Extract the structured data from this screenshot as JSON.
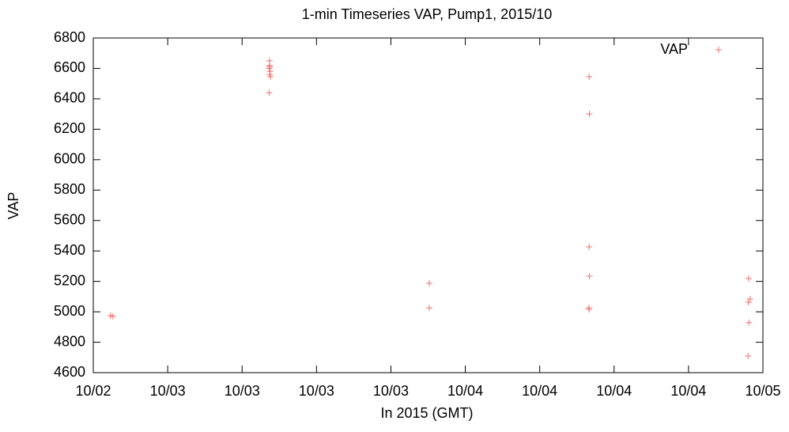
{
  "chart_data": {
    "type": "scatter",
    "title": "1-min Timeseries VAP, Pump1, 2015/10",
    "x_label": "In 2015 (GMT)",
    "y_label": "VAP",
    "legend_position": "top-right",
    "series": [
      {
        "name": "VAP",
        "color": "#f07070",
        "x": [
          2.808,
          2.816,
          3.342,
          3.342,
          3.343,
          3.341,
          3.344,
          3.343,
          3.345,
          3.341,
          3.879,
          3.879,
          4.416,
          4.417,
          4.416,
          4.417,
          4.415,
          4.416,
          4.952,
          4.957,
          4.951,
          4.953,
          4.95
        ],
        "values": [
          4975,
          4970,
          6650,
          6620,
          6610,
          6600,
          6580,
          6560,
          6545,
          6440,
          5188,
          5026,
          6545,
          6300,
          5427,
          5234,
          5026,
          5016,
          5219,
          5084,
          5063,
          4928,
          4709
        ]
      }
    ],
    "xlim": [
      2.75,
      5.0
    ],
    "xticks": [
      {
        "value": 2.75,
        "label": "10/02"
      },
      {
        "value": 3.0,
        "label": "10/03"
      },
      {
        "value": 3.25,
        "label": "10/03"
      },
      {
        "value": 3.5,
        "label": "10/03"
      },
      {
        "value": 3.75,
        "label": "10/03"
      },
      {
        "value": 4.0,
        "label": "10/04"
      },
      {
        "value": 4.25,
        "label": "10/04"
      },
      {
        "value": 4.5,
        "label": "10/04"
      },
      {
        "value": 4.75,
        "label": "10/04"
      },
      {
        "value": 5.0,
        "label": "10/05"
      }
    ],
    "ylim": [
      4600,
      6800
    ],
    "yticks": [
      4600,
      4800,
      5000,
      5200,
      5400,
      5600,
      5800,
      6000,
      6200,
      6400,
      6600,
      6800
    ],
    "grid": false
  }
}
